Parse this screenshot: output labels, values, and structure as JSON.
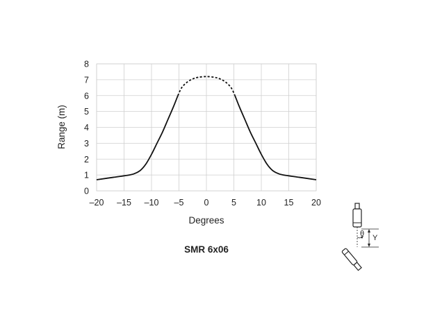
{
  "chart_data": {
    "type": "line",
    "title": "SMR 6x06",
    "xlabel": "Degrees",
    "ylabel": "Range (m)",
    "xlim": [
      -20,
      20
    ],
    "ylim": [
      0,
      8
    ],
    "xticks": [
      -20,
      -15,
      -10,
      -5,
      0,
      5,
      10,
      15,
      20
    ],
    "xtick_labels": [
      "–20",
      "–15",
      "–10",
      "–5",
      "0",
      "5",
      "10",
      "15",
      "20"
    ],
    "yticks": [
      0,
      1,
      2,
      3,
      4,
      5,
      6,
      7,
      8
    ],
    "ytick_labels": [
      "0",
      "1",
      "2",
      "3",
      "4",
      "5",
      "6",
      "7",
      "8"
    ],
    "grid": true,
    "series": [
      {
        "style": "solid",
        "x": [
          -20,
          -17,
          -14,
          -13,
          -12,
          -11,
          -10,
          -9,
          -8,
          -7,
          -6,
          -5.2
        ],
        "y": [
          0.7,
          0.85,
          1.0,
          1.1,
          1.3,
          1.7,
          2.3,
          3.0,
          3.7,
          4.5,
          5.3,
          6.0
        ]
      },
      {
        "style": "dashed",
        "x": [
          -5.2,
          -4.5,
          -3.5,
          -2.5,
          -1.5,
          0,
          1.5,
          2.5,
          3.5,
          4.5,
          5.2
        ],
        "y": [
          6.0,
          6.5,
          6.85,
          7.05,
          7.15,
          7.2,
          7.15,
          7.05,
          6.85,
          6.5,
          6.0
        ]
      },
      {
        "style": "solid",
        "x": [
          5.2,
          6,
          7,
          8,
          9,
          10,
          11,
          12,
          13,
          14,
          17,
          20
        ],
        "y": [
          6.0,
          5.3,
          4.5,
          3.7,
          3.0,
          2.3,
          1.7,
          1.3,
          1.1,
          1.0,
          0.85,
          0.7
        ]
      }
    ],
    "line_color": "#111111",
    "grid_color": "#cfcfcf"
  },
  "diagram": {
    "angle_label": "θ",
    "offset_label": "Y"
  }
}
